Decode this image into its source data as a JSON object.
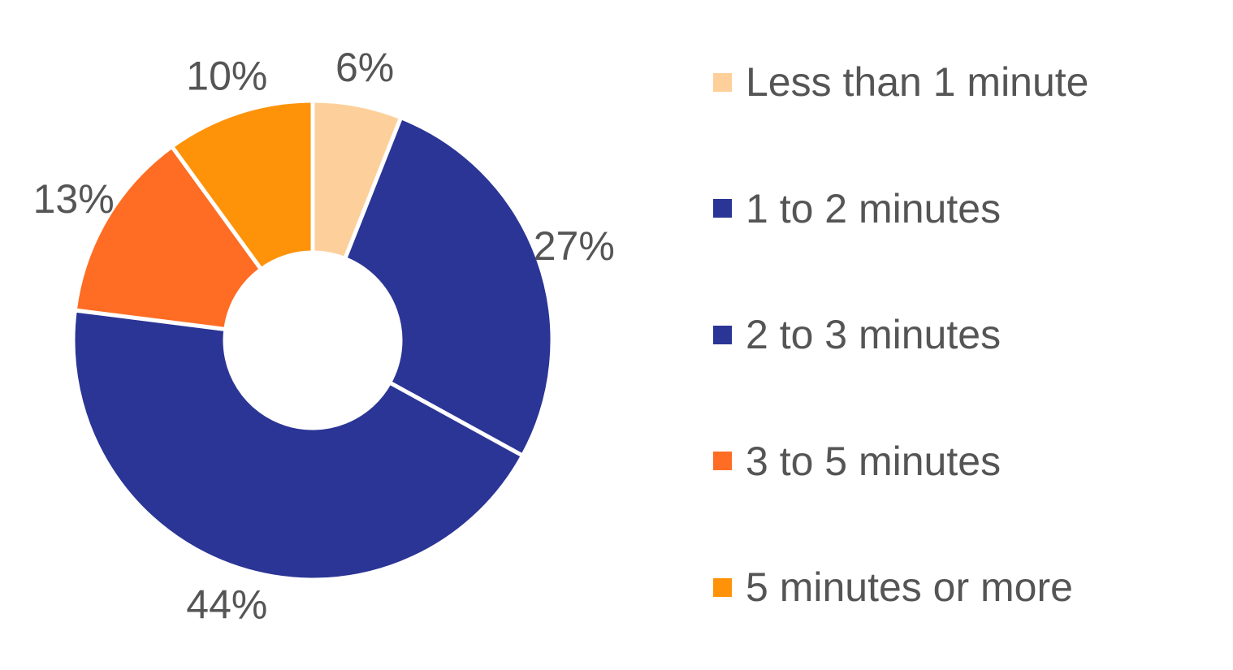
{
  "chart_data": {
    "type": "pie",
    "variant": "donut",
    "title": "",
    "categories": [
      "Less than 1 minute",
      "1 to 2 minutes",
      "2 to 3 minutes",
      "3 to 5 minutes",
      "5 minutes or more"
    ],
    "values": [
      6,
      27,
      44,
      13,
      10
    ],
    "value_labels": [
      "6%",
      "27%",
      "44%",
      "13%",
      "10%"
    ],
    "colors": [
      "#FDD09B",
      "#2B3595",
      "#2B3595",
      "#FE6D23",
      "#FE9309"
    ],
    "legend_position": "right"
  }
}
